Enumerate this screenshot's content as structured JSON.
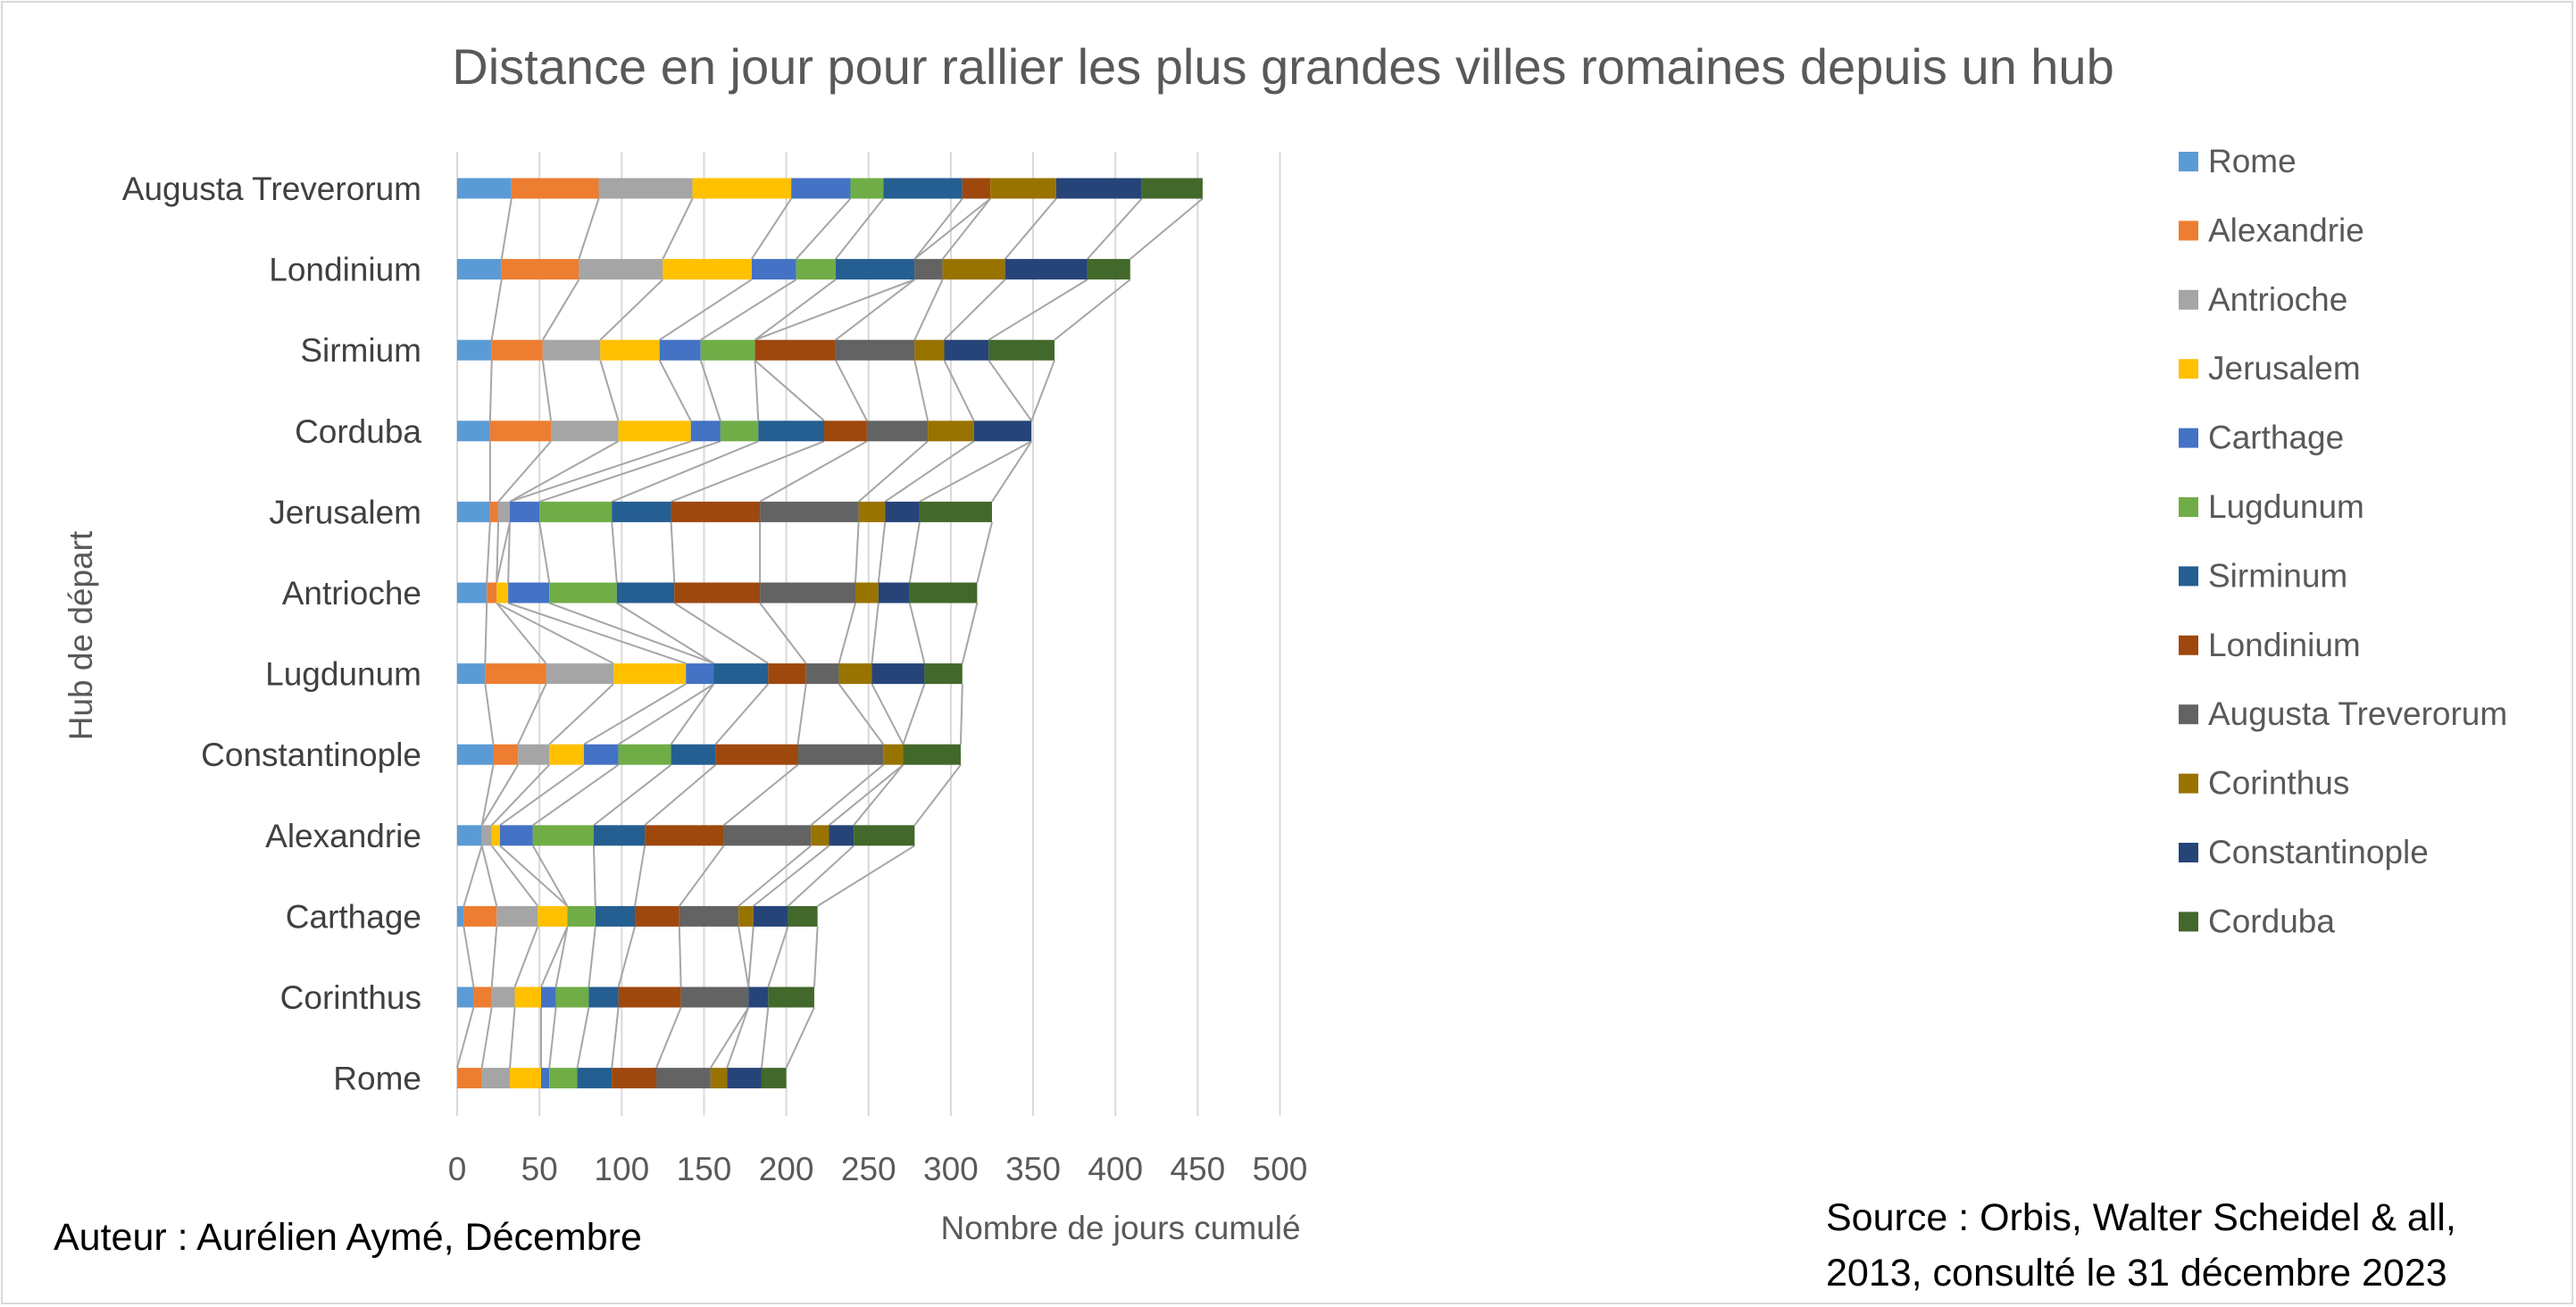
{
  "chart_data": {
    "type": "bar",
    "stacked": true,
    "orientation": "horizontal",
    "title": "Distance en jour pour rallier les plus grandes villes romaines depuis un hub",
    "xlabel": "Nombre de jours cumulé",
    "ylabel": "Hub de départ",
    "xlim": [
      0,
      500
    ],
    "xticks": [
      "0",
      "50",
      "100",
      "150",
      "200",
      "250",
      "300",
      "350",
      "400",
      "450",
      "500"
    ],
    "grid": "vertical",
    "legend_position": "right",
    "series_lines": true,
    "categories": [
      "Augusta Treverorum",
      "Londinium",
      "Sirmium",
      "Corduba",
      "Jerusalem",
      "Antrioche",
      "Lugdunum",
      "Constantinople",
      "Alexandrie",
      "Carthage",
      "Corinthus",
      "Rome"
    ],
    "series": [
      {
        "name": "Rome",
        "color": "#5b9bd5",
        "values": [
          33,
          27,
          21,
          20,
          20,
          18,
          17,
          22,
          15,
          4,
          10,
          0
        ]
      },
      {
        "name": "Alexandrie",
        "color": "#ed7d31",
        "values": [
          53,
          47,
          31,
          37,
          5,
          6,
          37,
          15,
          0,
          20,
          11,
          15
        ]
      },
      {
        "name": "Antrioche",
        "color": "#a5a5a5",
        "values": [
          57,
          51,
          35,
          41,
          7,
          0,
          41,
          19,
          6,
          25,
          14,
          17
        ]
      },
      {
        "name": "Jerusalem",
        "color": "#ffc000",
        "values": [
          60,
          54,
          36,
          44,
          0,
          7,
          44,
          21,
          5,
          18,
          16,
          19
        ]
      },
      {
        "name": "Carthage",
        "color": "#4472c4",
        "values": [
          36,
          27,
          25,
          18,
          18,
          25,
          17,
          21,
          20,
          0,
          9,
          5
        ]
      },
      {
        "name": "Lugdunum",
        "color": "#70ad47",
        "values": [
          20,
          24,
          33,
          23,
          44,
          41,
          0,
          32,
          37,
          17,
          20,
          17
        ]
      },
      {
        "name": "Sirminum",
        "color": "#255e91",
        "values": [
          48,
          48,
          0,
          40,
          36,
          35,
          33,
          27,
          31,
          24,
          18,
          21
        ]
      },
      {
        "name": "Londinium",
        "color": "#9e480e",
        "values": [
          17,
          0,
          49,
          26,
          54,
          52,
          23,
          50,
          48,
          27,
          38,
          27
        ]
      },
      {
        "name": "Augusta Treverorum",
        "color": "#636363",
        "values": [
          0,
          17,
          48,
          37,
          60,
          58,
          20,
          52,
          53,
          36,
          41,
          33
        ]
      },
      {
        "name": "Corinthus",
        "color": "#997300",
        "values": [
          40,
          38,
          18,
          28,
          16,
          14,
          20,
          12,
          11,
          9,
          0,
          10
        ]
      },
      {
        "name": "Constantinople",
        "color": "#264478",
        "values": [
          52,
          50,
          27,
          35,
          21,
          19,
          32,
          0,
          15,
          21,
          12,
          21
        ]
      },
      {
        "name": "Corduba",
        "color": "#43682b",
        "values": [
          37,
          26,
          40,
          0,
          44,
          41,
          23,
          35,
          37,
          18,
          28,
          15
        ]
      }
    ]
  },
  "footer": {
    "author": "Auteur  : Aurélien Aymé, Décembre",
    "source_line1": "Source : Orbis, Walter Scheidel & all,",
    "source_line2": "2013, consulté le 31 décembre 2023"
  }
}
